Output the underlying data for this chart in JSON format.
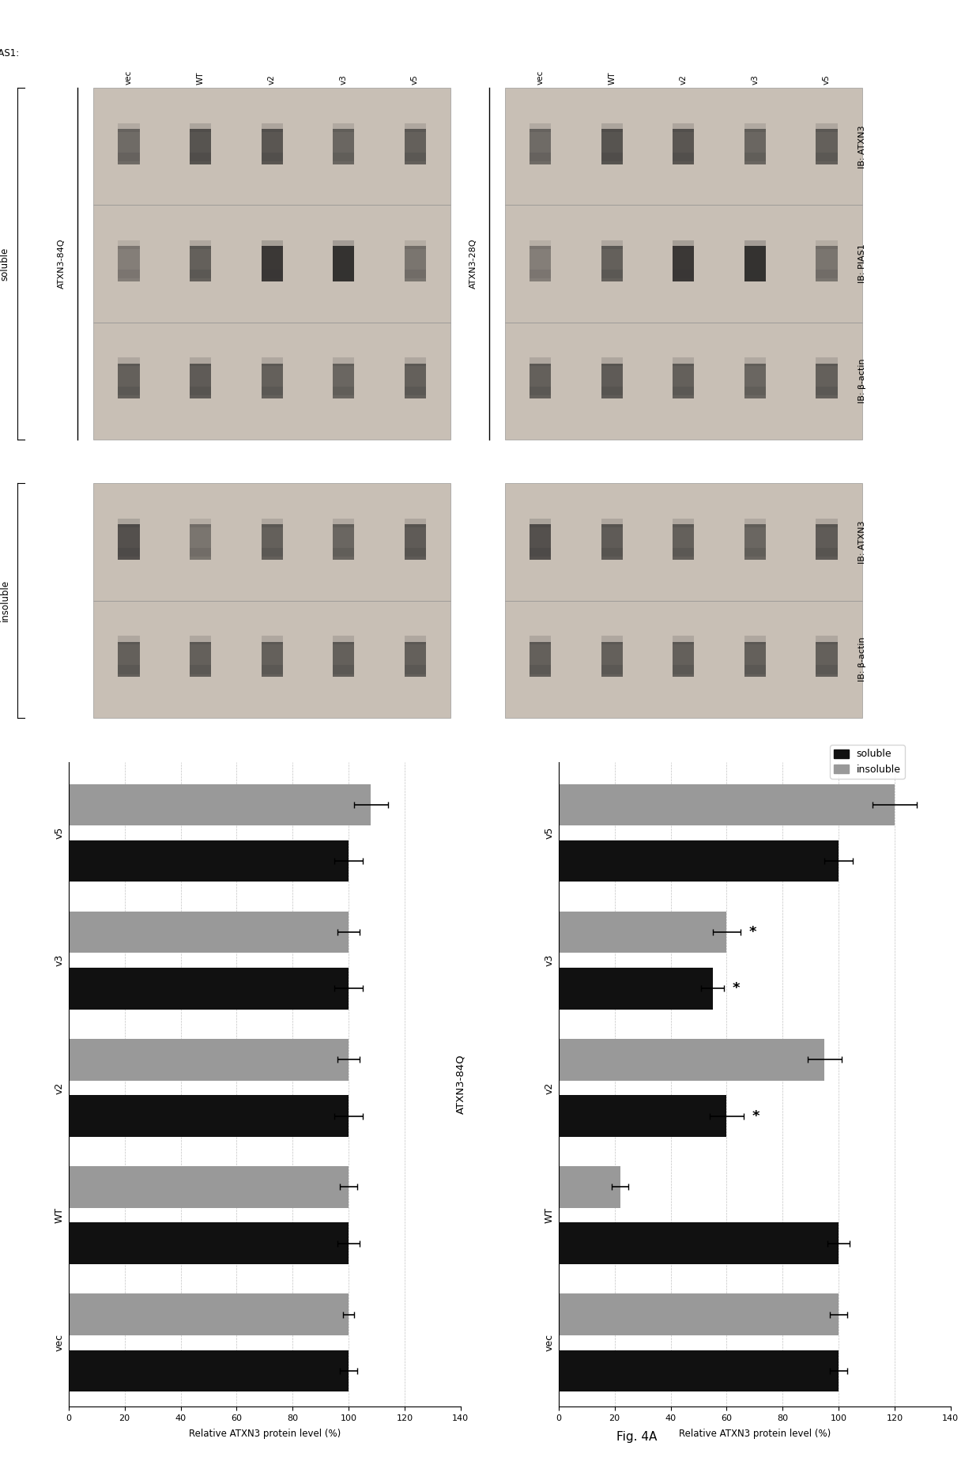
{
  "title": "Fig. 4A",
  "blot_labels_right": [
    "IB: ATXN3",
    "IB: PIAS1",
    "IB: β-actin",
    "IB: ATXN3",
    "IB: β-actin"
  ],
  "lane_labels": [
    "vec",
    "WT",
    "v2",
    "v3",
    "v5"
  ],
  "bar_categories": [
    "vec",
    "WT",
    "v2",
    "v3",
    "v5"
  ],
  "chart_title_28Q": "ATXN3-28Q",
  "chart_title_84Q": "ATXN3-84Q",
  "ylabel": "Relative ATXN3 protein level (%)",
  "xticks": [
    0,
    20,
    40,
    60,
    80,
    100,
    120,
    140
  ],
  "soluble_color": "#111111",
  "insoluble_color": "#999999",
  "data_28Q_soluble": [
    100,
    100,
    100,
    100,
    100
  ],
  "data_28Q_insoluble": [
    100,
    100,
    100,
    100,
    108
  ],
  "data_28Q_sol_err": [
    3,
    4,
    5,
    5,
    5
  ],
  "data_28Q_insol_err": [
    2,
    3,
    4,
    4,
    6
  ],
  "data_84Q_soluble": [
    100,
    100,
    60,
    55,
    100
  ],
  "data_84Q_insoluble": [
    100,
    22,
    95,
    60,
    120
  ],
  "data_84Q_sol_err": [
    3,
    4,
    6,
    4,
    5
  ],
  "data_84Q_insol_err": [
    3,
    3,
    6,
    5,
    8
  ],
  "blot_bg": "#c8bfb5",
  "blot_group1_intensities": [
    [
      55,
      70,
      68,
      58,
      62
    ],
    [
      42,
      62,
      88,
      92,
      48
    ],
    [
      62,
      65,
      62,
      58,
      62
    ],
    [
      72,
      48,
      62,
      58,
      65
    ],
    [
      62,
      62,
      62,
      62,
      62
    ]
  ],
  "blot_group2_intensities": [
    [
      55,
      70,
      68,
      58,
      62
    ],
    [
      42,
      62,
      88,
      92,
      48
    ],
    [
      62,
      65,
      62,
      58,
      62
    ],
    [
      72,
      65,
      62,
      58,
      65
    ],
    [
      62,
      62,
      62,
      62,
      62
    ]
  ]
}
